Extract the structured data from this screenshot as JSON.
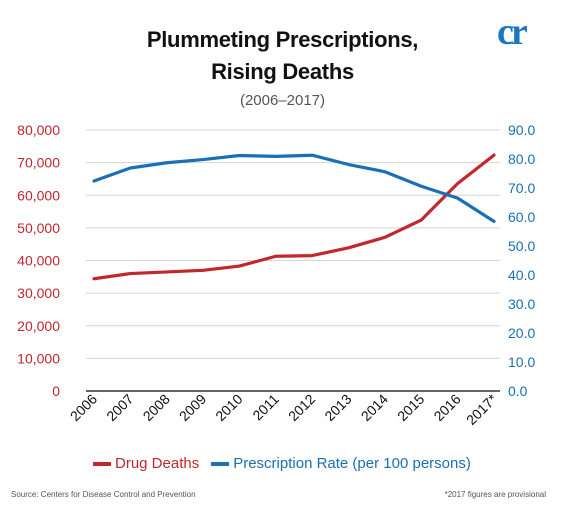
{
  "header": {
    "title_line1": "Plummeting Prescriptions,",
    "title_line2": "Rising Deaths",
    "subtitle": "(2006–2017)",
    "logo_text": "cr"
  },
  "legend": {
    "drug_deaths": "Drug Deaths",
    "prescription_rate": "Prescription Rate (per 100 persons)"
  },
  "footer": {
    "source": "Source: Centers for Disease Control and Prevention",
    "note": "*2017 figures are provisional"
  },
  "colors": {
    "drug_deaths": "#c1272d",
    "prescription_rate": "#1a6fb5",
    "grid": "#d4d4d4"
  },
  "chart_data": {
    "type": "line",
    "title": "Plummeting Prescriptions, Rising Deaths",
    "subtitle": "(2006–2017)",
    "x": [
      "2006",
      "2007",
      "2008",
      "2009",
      "2010",
      "2011",
      "2012",
      "2013",
      "2014",
      "2015",
      "2016",
      "2017*"
    ],
    "y_left": {
      "range": [
        0,
        80000
      ],
      "ticks": [
        "0",
        "10,000",
        "20,000",
        "30,000",
        "40,000",
        "50,000",
        "60,000",
        "70,000",
        "80,000"
      ],
      "color": "#c1272d"
    },
    "y_right": {
      "range": [
        0,
        90
      ],
      "ticks": [
        "0.0",
        "10.0",
        "20.0",
        "30.0",
        "40.0",
        "50.0",
        "60.0",
        "70.0",
        "80.0",
        "90.0"
      ],
      "color": "#1a6fb5"
    },
    "series": [
      {
        "name": "Drug Deaths",
        "axis": "left",
        "values": [
          34400,
          36000,
          36500,
          37000,
          38300,
          41300,
          41500,
          43900,
          47100,
          52400,
          63600,
          72300
        ]
      },
      {
        "name": "Prescription Rate (per 100 persons)",
        "axis": "right",
        "values": [
          72.4,
          76.9,
          78.7,
          79.8,
          81.2,
          80.9,
          81.3,
          78.1,
          75.6,
          70.6,
          66.5,
          58.5
        ]
      }
    ],
    "grid": true,
    "legend_position": "bottom"
  }
}
